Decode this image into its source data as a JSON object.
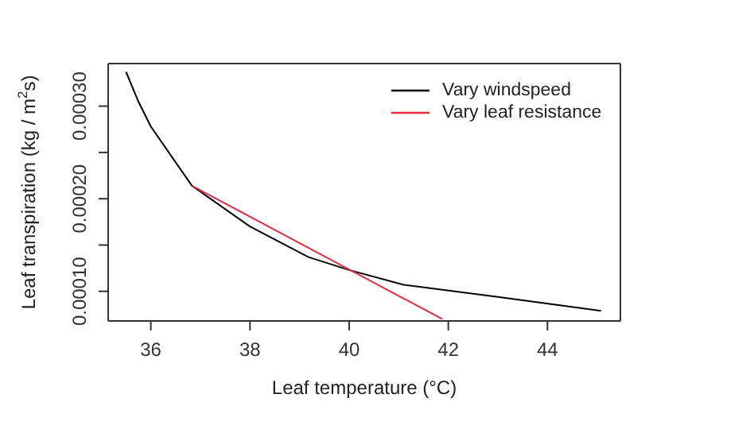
{
  "chart_data": {
    "type": "line",
    "xlabel": "Leaf temperature (°C)",
    "ylabel": "Leaf transpiration (kg / m$^{2}$s)",
    "series": [
      {
        "name": "Vary windspeed",
        "color": "#000000",
        "x": [
          35.5,
          35.75,
          36.0,
          36.83,
          38.0,
          39.18,
          40.0,
          41.1,
          43.0,
          45.08
        ],
        "values": [
          0.000337,
          0.000305,
          0.000278,
          0.000214,
          0.00017,
          0.000137,
          0.000123,
          0.000107,
          9.4e-05,
          7.9e-05
        ]
      },
      {
        "name": "Vary leaf resistance",
        "color": "#e8283c",
        "x": [
          36.83,
          41.88
        ],
        "values": [
          0.000214,
          7e-05
        ]
      }
    ],
    "xlim": [
      35.14,
      45.47
    ],
    "xticks": [
      36,
      38,
      40,
      42,
      44
    ],
    "ylim": [
      6.8e-05,
      0.000346
    ],
    "yticks": [
      {
        "value": 0.0001,
        "label": "0.00010"
      },
      {
        "value": 0.00015,
        "label": null
      },
      {
        "value": 0.0002,
        "label": "0.00020"
      },
      {
        "value": 0.00025,
        "label": null
      },
      {
        "value": 0.0003,
        "label": "0.00030"
      }
    ],
    "legend": "top right",
    "marker": "none",
    "line_style": "solid"
  }
}
